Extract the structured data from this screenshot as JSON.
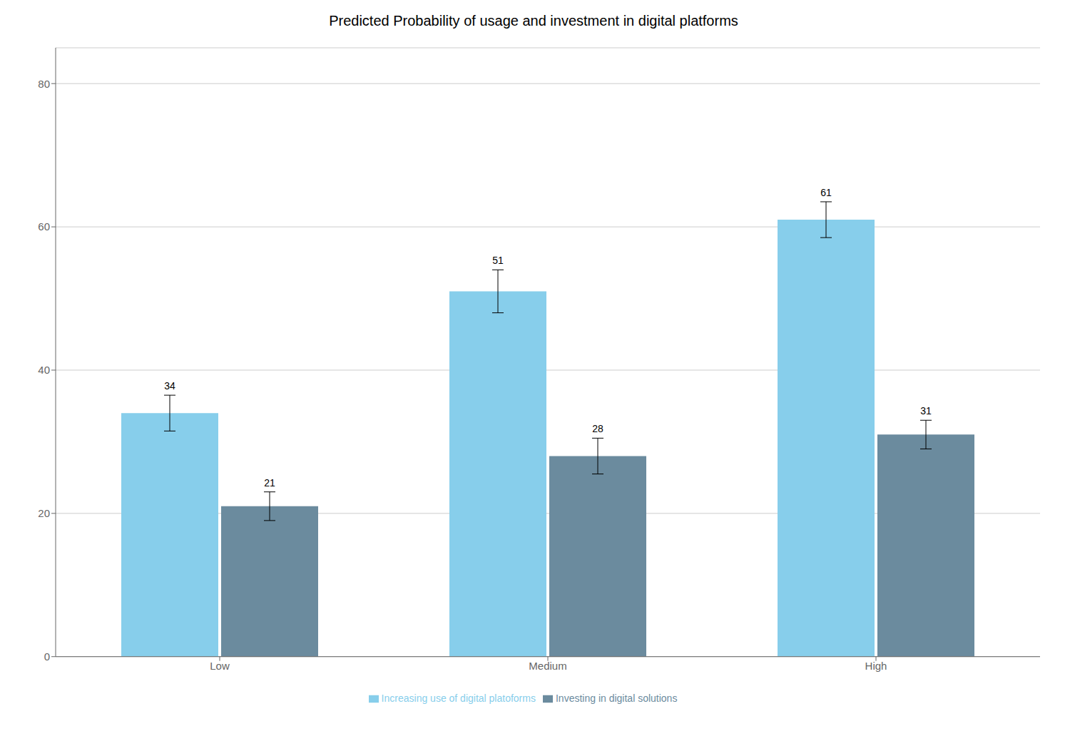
{
  "chart_data": {
    "type": "bar",
    "title": "Predicted Probability of usage and investment in digital platforms",
    "categories": [
      "Low",
      "Medium",
      "High"
    ],
    "series": [
      {
        "name": "Increasing use of digital platoforms",
        "color": "#87CEEB",
        "values": [
          34,
          51,
          61
        ],
        "errors": [
          2.5,
          3.0,
          2.5
        ]
      },
      {
        "name": "Investing in digital solutions",
        "color": "#6B8B9E",
        "values": [
          21,
          28,
          31
        ],
        "errors": [
          2.0,
          2.5,
          2.0
        ]
      }
    ],
    "ylim": [
      0,
      85
    ],
    "yticks": [
      0,
      20,
      40,
      60,
      80
    ],
    "grid": true,
    "legend": "bottom",
    "data_labels": true
  }
}
